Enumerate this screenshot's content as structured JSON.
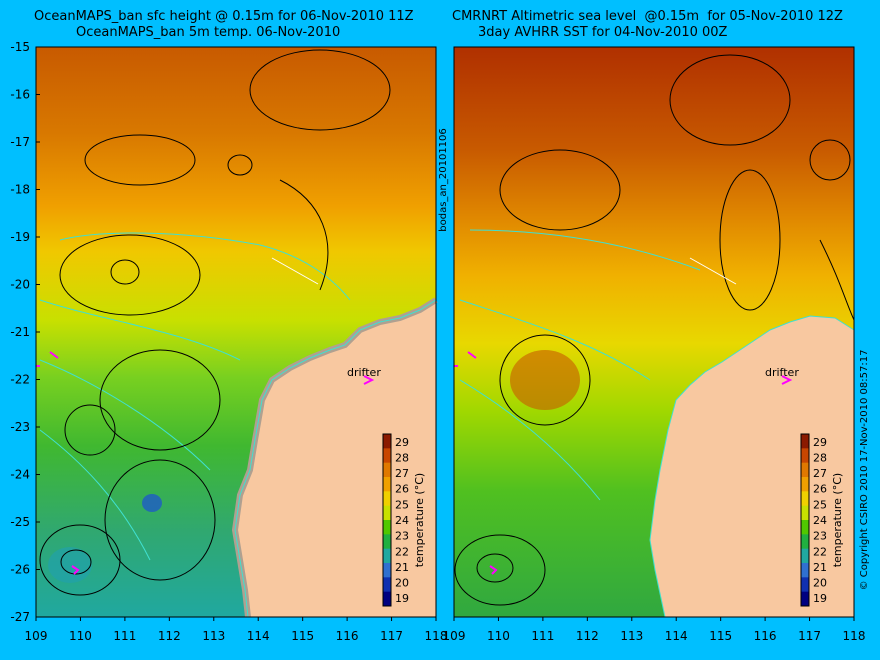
{
  "left_panel": {
    "title_line1": "OceanMAPS_ban sfc height @ 0.15m for 06-Nov-2010 11Z",
    "title_line2": "OceanMAPS_ban 5m temp. 06-Nov-2010",
    "drifter_label": "drifter"
  },
  "right_panel": {
    "title_line1": "CMRNRT Altimetric sea level  @0.15m  for 05-Nov-2010 12Z",
    "title_line2": "3day AVHRR SST for 04-Nov-2010 00Z",
    "drifter_label": "drifter"
  },
  "middle_label": "bodas_an_20101106",
  "right_label": "© Copyright CSIRO 2010   17-Nov-2010 08:57:17",
  "colorbar": {
    "label": "temperature (°C)",
    "ticks": [
      "29",
      "28",
      "27",
      "26",
      "25",
      "24",
      "23",
      "22",
      "21",
      "20",
      "19"
    ],
    "colors": [
      "#8B1A00",
      "#C84600",
      "#E07800",
      "#F0A000",
      "#F0D000",
      "#C8E000",
      "#50C800",
      "#20B040",
      "#20A8A0",
      "#3070D0",
      "#1030B0",
      "#000080"
    ]
  },
  "axes": {
    "lat_ticks": [
      "-15",
      "-16",
      "-17",
      "-18",
      "-19",
      "-20",
      "-21",
      "-22",
      "-23",
      "-24",
      "-25",
      "-26",
      "-27"
    ],
    "lon_ticks": [
      "109",
      "110",
      "111",
      "112",
      "113",
      "114",
      "115",
      "116",
      "117",
      "118"
    ]
  },
  "colors": {
    "background": "#00BFFF",
    "land": "#F8C8A0",
    "coastline": "#40E0D0",
    "drifter": "#FF00FF"
  }
}
